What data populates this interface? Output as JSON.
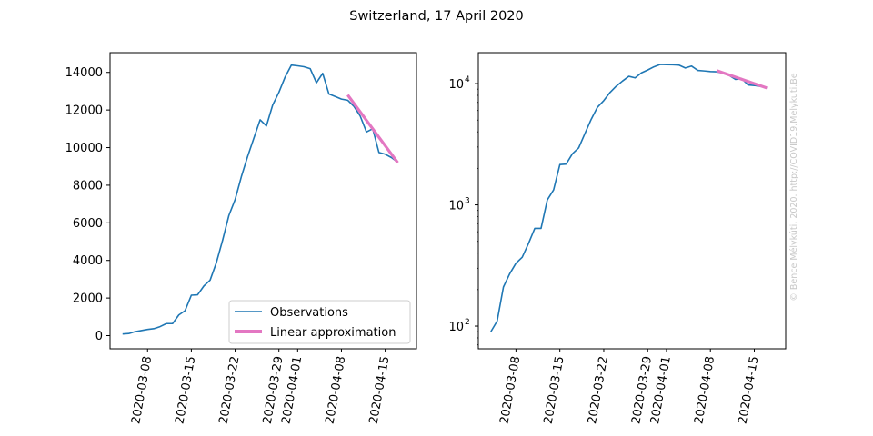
{
  "figure": {
    "title": "Switzerland, 17 April 2020",
    "watermark": "© Bence Mélykúti, 2020. http://COVID19.Melykuti.Be"
  },
  "chart_data": [
    {
      "type": "line",
      "panel": "left",
      "yscale": "linear",
      "ylim": [
        -700,
        15050
      ],
      "xlim": [
        "2020-03-02",
        "2020-04-20"
      ],
      "x_ticks": [
        "2020-03-08",
        "2020-03-15",
        "2020-03-22",
        "2020-03-29",
        "2020-04-01",
        "2020-04-08",
        "2020-04-15"
      ],
      "y_ticks": [
        0,
        2000,
        4000,
        6000,
        8000,
        10000,
        12000,
        14000
      ],
      "y_tick_labels": [
        "0",
        "2000",
        "4000",
        "6000",
        "8000",
        "10000",
        "12000",
        "14000"
      ],
      "legend": {
        "position": "lower-right",
        "entries": [
          {
            "label": "Observations",
            "color": "#1f77b4"
          },
          {
            "label": "Linear approximation",
            "color": "#e377c2"
          }
        ]
      },
      "series": [
        {
          "name": "Observations",
          "color": "#1f77b4",
          "x": [
            "2020-03-04",
            "2020-03-05",
            "2020-03-06",
            "2020-03-07",
            "2020-03-08",
            "2020-03-09",
            "2020-03-10",
            "2020-03-11",
            "2020-03-12",
            "2020-03-13",
            "2020-03-14",
            "2020-03-15",
            "2020-03-16",
            "2020-03-17",
            "2020-03-18",
            "2020-03-19",
            "2020-03-20",
            "2020-03-21",
            "2020-03-22",
            "2020-03-23",
            "2020-03-24",
            "2020-03-25",
            "2020-03-26",
            "2020-03-27",
            "2020-03-28",
            "2020-03-29",
            "2020-03-30",
            "2020-03-31",
            "2020-04-01",
            "2020-04-02",
            "2020-04-03",
            "2020-04-04",
            "2020-04-05",
            "2020-04-06",
            "2020-04-07",
            "2020-04-08",
            "2020-04-09",
            "2020-04-10",
            "2020-04-11",
            "2020-04-12",
            "2020-04-13",
            "2020-04-14",
            "2020-04-15",
            "2020-04-16",
            "2020-04-17"
          ],
          "values": [
            90,
            110,
            210,
            270,
            330,
            370,
            480,
            640,
            640,
            1100,
            1330,
            2150,
            2170,
            2640,
            2950,
            3880,
            5080,
            6390,
            7240,
            8460,
            9530,
            10510,
            11480,
            11150,
            12260,
            12940,
            13760,
            14390,
            14350,
            14300,
            14200,
            13450,
            13950,
            12850,
            12720,
            12580,
            12520,
            12190,
            11680,
            10830,
            11000,
            9740,
            9650,
            9470,
            9220
          ]
        },
        {
          "name": "Linear approximation",
          "color": "#e377c2",
          "x": [
            "2020-04-09",
            "2020-04-17"
          ],
          "values": [
            12800,
            9200
          ]
        }
      ]
    },
    {
      "type": "line",
      "panel": "right",
      "yscale": "log",
      "ylim": [
        65,
        18000
      ],
      "xlim": [
        "2020-03-02",
        "2020-04-20"
      ],
      "x_ticks": [
        "2020-03-08",
        "2020-03-15",
        "2020-03-22",
        "2020-03-29",
        "2020-04-01",
        "2020-04-08",
        "2020-04-15"
      ],
      "y_ticks": [
        100,
        1000,
        10000
      ],
      "y_tick_labels": [
        {
          "base": "10",
          "exp": "2"
        },
        {
          "base": "10",
          "exp": "3"
        },
        {
          "base": "10",
          "exp": "4"
        }
      ],
      "series": [
        {
          "name": "Observations",
          "color": "#1f77b4",
          "x": [
            "2020-03-04",
            "2020-03-05",
            "2020-03-06",
            "2020-03-07",
            "2020-03-08",
            "2020-03-09",
            "2020-03-10",
            "2020-03-11",
            "2020-03-12",
            "2020-03-13",
            "2020-03-14",
            "2020-03-15",
            "2020-03-16",
            "2020-03-17",
            "2020-03-18",
            "2020-03-19",
            "2020-03-20",
            "2020-03-21",
            "2020-03-22",
            "2020-03-23",
            "2020-03-24",
            "2020-03-25",
            "2020-03-26",
            "2020-03-27",
            "2020-03-28",
            "2020-03-29",
            "2020-03-30",
            "2020-03-31",
            "2020-04-01",
            "2020-04-02",
            "2020-04-03",
            "2020-04-04",
            "2020-04-05",
            "2020-04-06",
            "2020-04-07",
            "2020-04-08",
            "2020-04-09",
            "2020-04-10",
            "2020-04-11",
            "2020-04-12",
            "2020-04-13",
            "2020-04-14",
            "2020-04-15",
            "2020-04-16",
            "2020-04-17"
          ],
          "values": [
            90,
            110,
            210,
            270,
            330,
            370,
            480,
            640,
            640,
            1100,
            1330,
            2150,
            2170,
            2640,
            2950,
            3880,
            5080,
            6390,
            7240,
            8460,
            9530,
            10510,
            11480,
            11150,
            12260,
            12940,
            13760,
            14390,
            14350,
            14300,
            14200,
            13450,
            13950,
            12850,
            12720,
            12580,
            12520,
            12190,
            11680,
            10830,
            11000,
            9740,
            9650,
            9470,
            9220
          ]
        },
        {
          "name": "Linear approximation",
          "color": "#e377c2",
          "x": [
            "2020-04-09",
            "2020-04-17"
          ],
          "values": [
            12800,
            9200
          ]
        }
      ]
    }
  ]
}
